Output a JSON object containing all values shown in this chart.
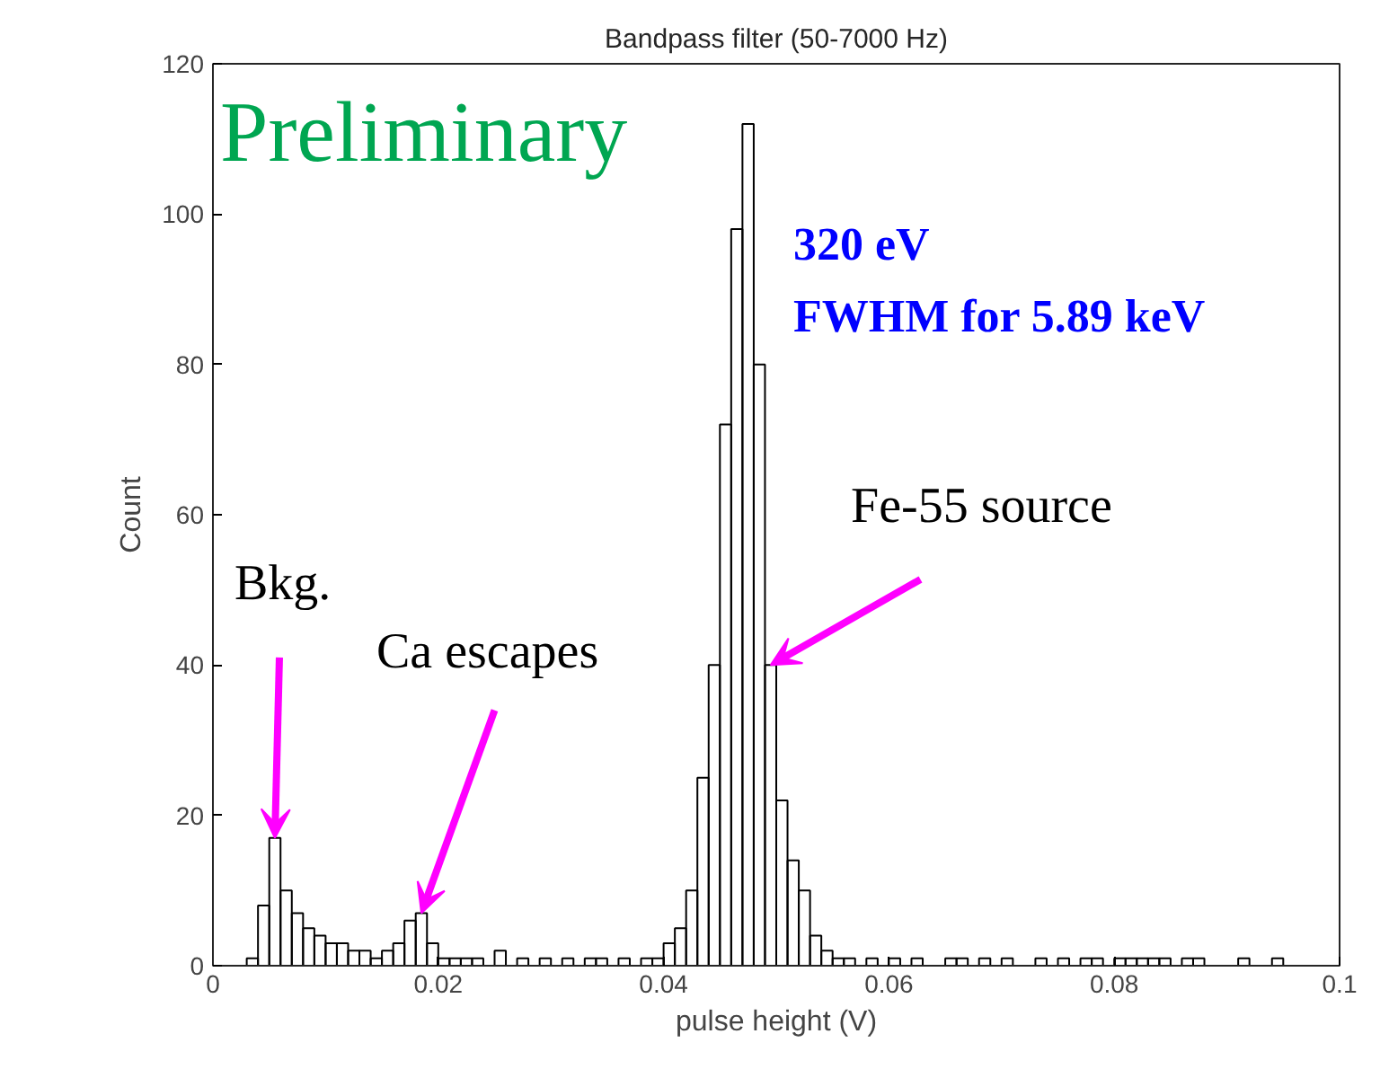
{
  "chart_data": {
    "type": "histogram",
    "title": "Bandpass filter (50-7000 Hz)",
    "xlabel": "pulse height (V)",
    "ylabel": "Count",
    "bins": [
      0,
      0.001,
      0.002,
      0.003,
      0.004,
      0.005,
      0.006,
      0.007,
      0.008,
      0.009,
      0.01,
      0.011,
      0.012,
      0.013,
      0.014,
      0.015,
      0.016,
      0.017,
      0.018,
      0.019,
      0.02,
      0.021,
      0.022,
      0.023,
      0.024,
      0.025,
      0.026,
      0.027,
      0.028,
      0.029,
      0.03,
      0.031,
      0.032,
      0.033,
      0.034,
      0.035,
      0.036,
      0.037,
      0.038,
      0.039,
      0.04,
      0.041,
      0.042,
      0.043,
      0.044,
      0.045,
      0.046,
      0.047,
      0.048,
      0.049,
      0.05,
      0.051,
      0.052,
      0.053,
      0.054,
      0.055,
      0.056,
      0.057,
      0.058,
      0.059,
      0.06,
      0.061,
      0.062,
      0.063,
      0.064,
      0.065,
      0.066,
      0.067,
      0.068,
      0.069,
      0.07,
      0.071,
      0.072,
      0.073,
      0.074,
      0.075,
      0.076,
      0.077,
      0.078,
      0.079,
      0.08,
      0.081,
      0.082,
      0.083,
      0.084,
      0.085,
      0.086,
      0.087,
      0.088,
      0.089,
      0.09,
      0.091,
      0.092,
      0.093,
      0.094,
      0.095
    ],
    "values": [
      0,
      0,
      0,
      1,
      8,
      17,
      10,
      7,
      5,
      4,
      3,
      3,
      2,
      2,
      1,
      2,
      3,
      6,
      7,
      3,
      1,
      1,
      1,
      1,
      0,
      2,
      0,
      1,
      0,
      1,
      0,
      1,
      0,
      1,
      1,
      0,
      1,
      0,
      1,
      1,
      3,
      5,
      10,
      25,
      40,
      72,
      98,
      112,
      80,
      40,
      22,
      14,
      10,
      4,
      2,
      1,
      1,
      0,
      1,
      0,
      1,
      0,
      1,
      0,
      0,
      1,
      1,
      0,
      1,
      0,
      1,
      0,
      0,
      1,
      0,
      1,
      0,
      1,
      1,
      0,
      1,
      1,
      1,
      1,
      1,
      0,
      1,
      1,
      0,
      0,
      0,
      1,
      0,
      0,
      1
    ],
    "color": "#000000",
    "xlim": [
      0,
      0.1
    ],
    "ylim": [
      0,
      120
    ],
    "xticks": [
      0,
      0.02,
      0.04,
      0.06,
      0.08,
      0.1
    ],
    "yticks": [
      0,
      20,
      40,
      60,
      80,
      100,
      120
    ],
    "grid": false,
    "annotations": [
      "Preliminary",
      "320 eV",
      "FWHM for 5.89 keV",
      {
        "text": "Bkg.",
        "x": 0.0055,
        "y": 17
      },
      {
        "text": "Ca escapes",
        "x": 0.0185,
        "y": 7
      },
      {
        "text": "Fe-55 source",
        "x": 0.0495,
        "y": 40
      }
    ]
  }
}
